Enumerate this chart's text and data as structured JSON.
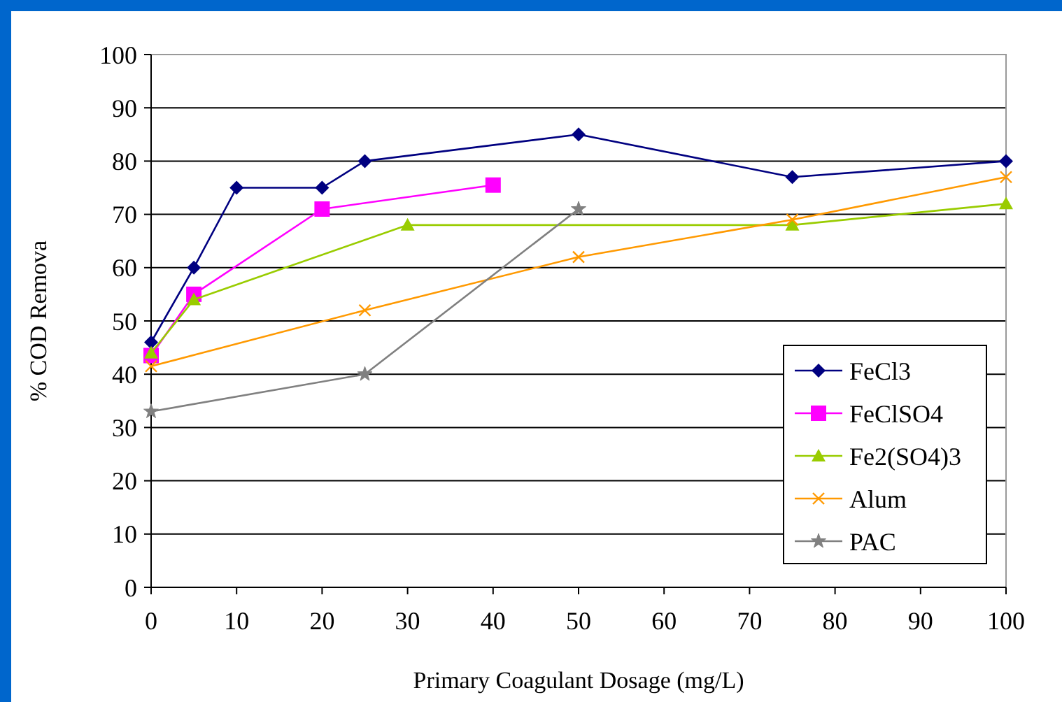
{
  "chart_data": {
    "type": "line",
    "xlabel": "Primary Coagulant Dosage (mg/L)",
    "ylabel": "% COD Remova",
    "xlim": [
      0,
      100
    ],
    "xticks": [
      0,
      10,
      20,
      30,
      40,
      50,
      60,
      70,
      80,
      90,
      100
    ],
    "ylim": [
      0,
      100
    ],
    "yticks": [
      0,
      10,
      20,
      30,
      40,
      50,
      60,
      70,
      80,
      90,
      100
    ],
    "grid": "y",
    "legend": "bottom right",
    "series": [
      {
        "name": "FeCl3",
        "color": "#000080",
        "marker": "diamond",
        "x": [
          0,
          5,
          10,
          20,
          25,
          50,
          75,
          100
        ],
        "values": [
          46,
          60,
          75,
          75,
          80,
          85,
          77,
          80
        ]
      },
      {
        "name": "FeClSO4",
        "color": "#ff00ff",
        "marker": "square",
        "x": [
          0,
          5,
          20,
          40
        ],
        "values": [
          43.5,
          55,
          71,
          75.5
        ]
      },
      {
        "name": "Fe2(SO4)3",
        "color": "#99cc00",
        "marker": "triangle",
        "x": [
          0,
          5,
          30,
          75,
          100
        ],
        "values": [
          44,
          54,
          68,
          68,
          72
        ]
      },
      {
        "name": "Alum",
        "color": "#ff9900",
        "marker": "cross",
        "x": [
          0,
          25,
          50,
          75,
          100
        ],
        "values": [
          41.5,
          52,
          62,
          69,
          77
        ]
      },
      {
        "name": "PAC",
        "color": "#808080",
        "marker": "star",
        "x": [
          0,
          25,
          50
        ],
        "values": [
          33,
          40,
          71
        ]
      }
    ]
  }
}
